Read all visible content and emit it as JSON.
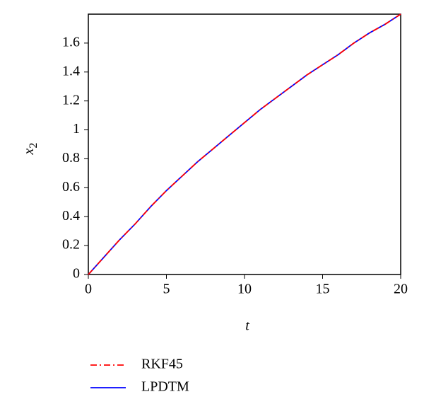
{
  "chart_data": {
    "type": "line",
    "xlabel": "t",
    "ylabel": {
      "base": "x",
      "sub": "2"
    },
    "x": [
      0,
      1,
      2,
      3,
      4,
      5,
      6,
      7,
      8,
      9,
      10,
      11,
      12,
      13,
      14,
      15,
      16,
      17,
      18,
      19,
      20
    ],
    "series": [
      {
        "name": "RKF45",
        "color": "#ff0000",
        "dash": "dash-dot",
        "values": [
          0,
          0.12,
          0.24,
          0.35,
          0.47,
          0.58,
          0.68,
          0.78,
          0.87,
          0.96,
          1.05,
          1.14,
          1.22,
          1.3,
          1.38,
          1.45,
          1.52,
          1.6,
          1.67,
          1.73,
          1.8
        ]
      },
      {
        "name": "LPDTM",
        "color": "#0000ff",
        "dash": "solid",
        "values": [
          0,
          0.12,
          0.24,
          0.35,
          0.47,
          0.58,
          0.68,
          0.78,
          0.87,
          0.96,
          1.05,
          1.14,
          1.22,
          1.3,
          1.38,
          1.45,
          1.52,
          1.6,
          1.67,
          1.73,
          1.8
        ]
      }
    ],
    "xlim": [
      0,
      20
    ],
    "xticks": [
      0,
      5,
      10,
      15,
      20
    ],
    "ylim": [
      0,
      1.8
    ],
    "yticks": [
      0,
      0.2,
      0.4,
      0.6,
      0.8,
      1,
      1.2,
      1.4,
      1.6
    ],
    "grid": false
  }
}
